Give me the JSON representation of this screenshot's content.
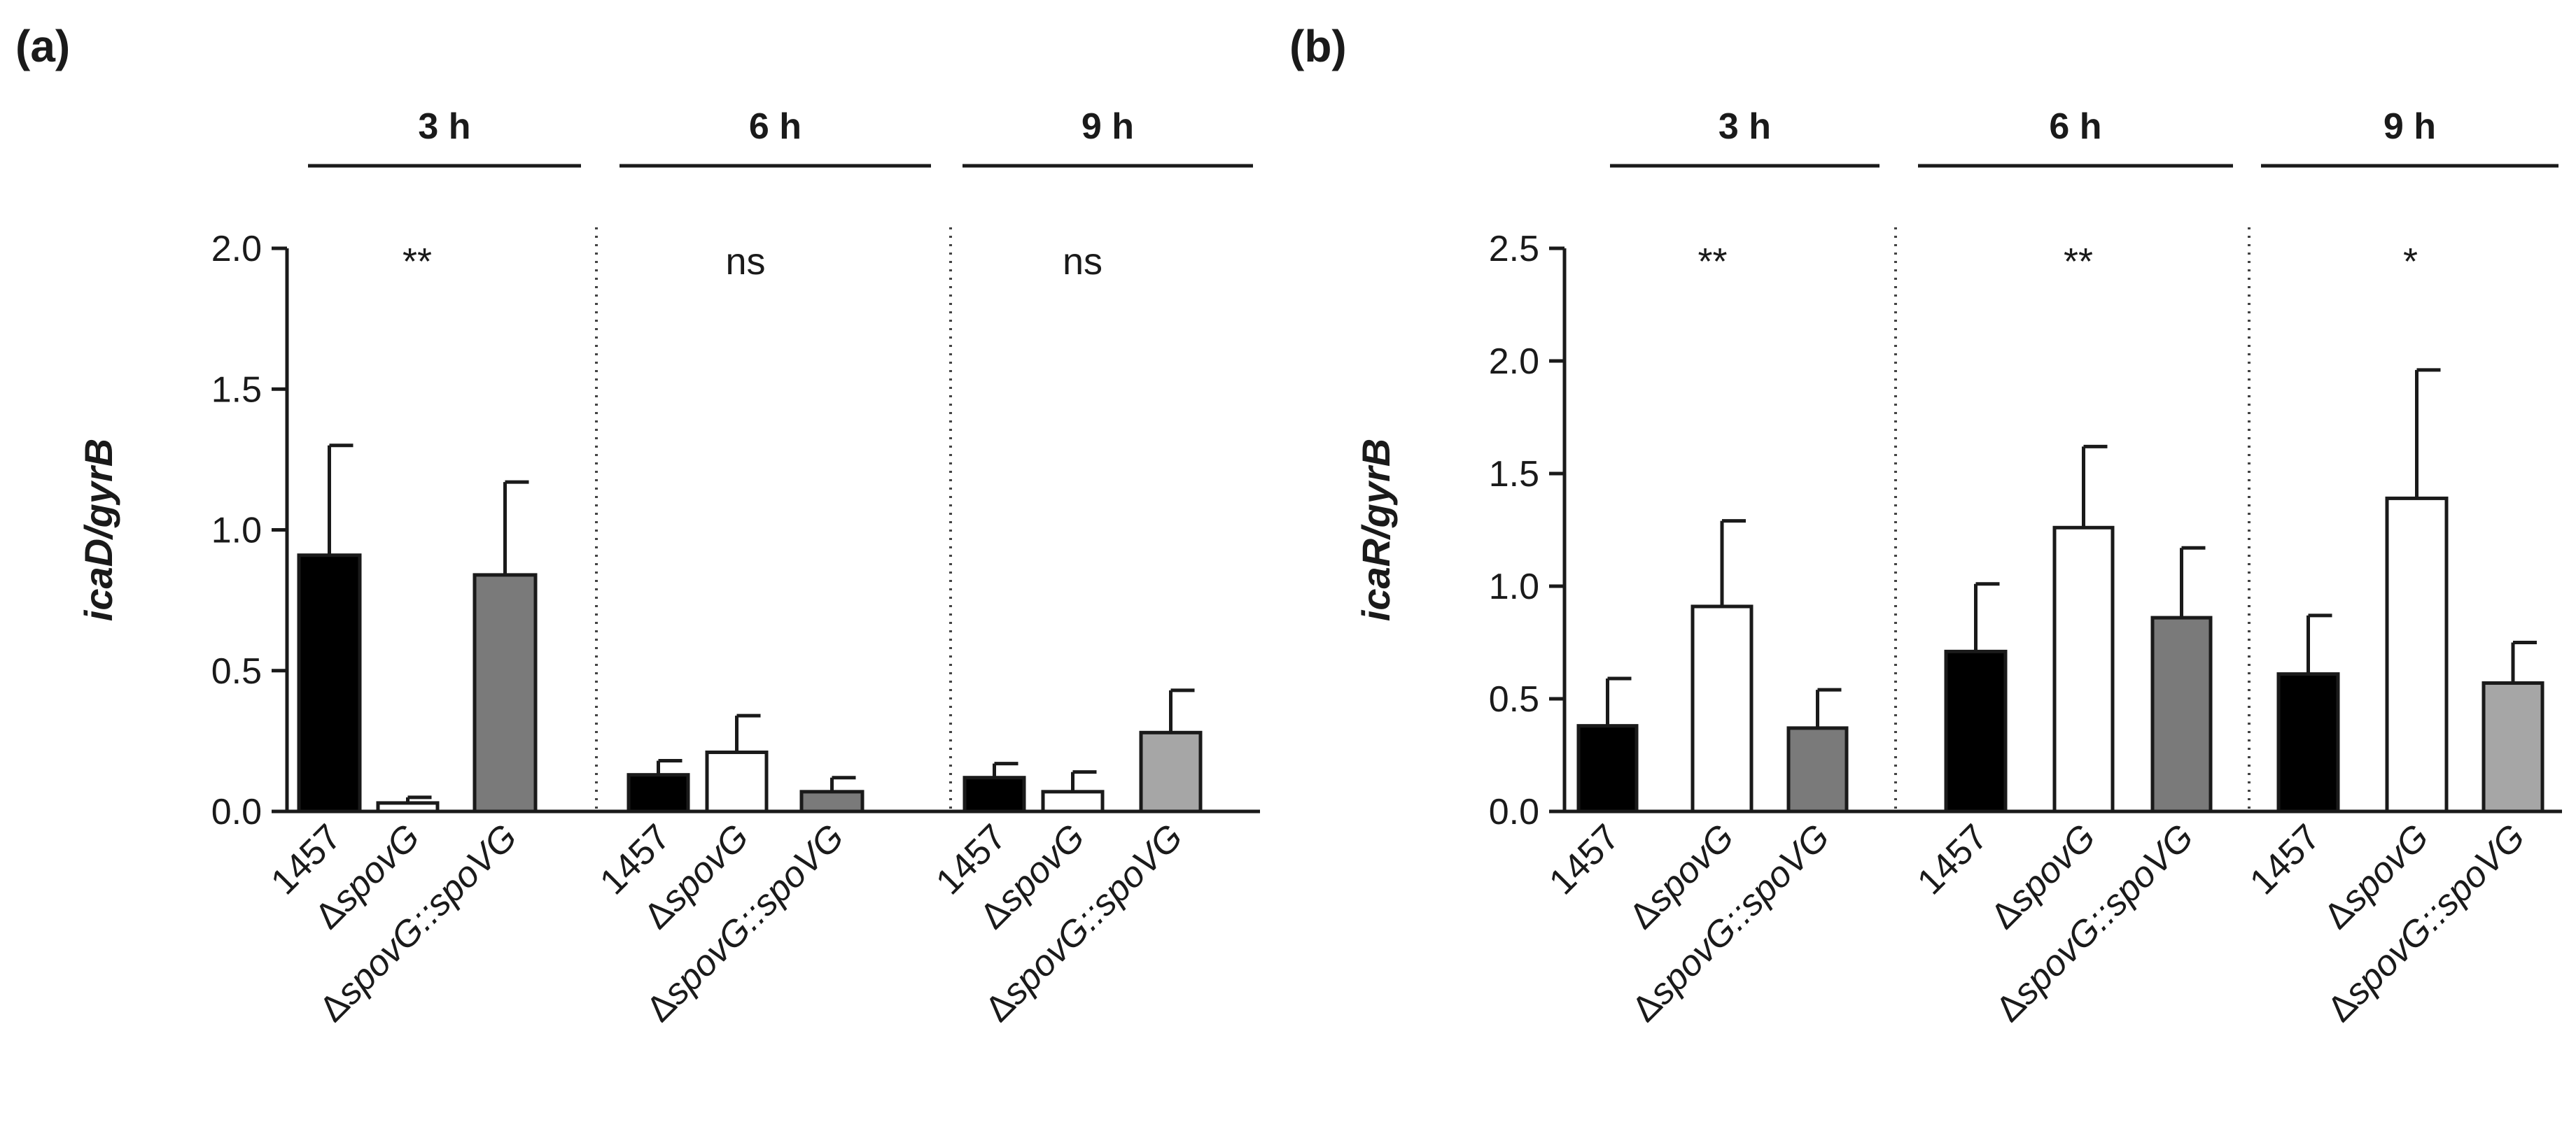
{
  "chart_data": [
    {
      "type": "bar",
      "panel": "(a)",
      "ylabel": "icaD/gyrB",
      "ylim": [
        0,
        2.0
      ],
      "yticks": [
        "0.0",
        "0.5",
        "1.0",
        "1.5",
        "2.0"
      ],
      "groups": [
        {
          "label": "3 h",
          "significance": "**",
          "categories": [
            "1457",
            "ΔspovG",
            "ΔspovG::spoVG"
          ],
          "values": [
            0.91,
            0.03,
            0.84
          ],
          "errors": [
            0.39,
            0.02,
            0.33
          ],
          "colors": [
            "#000000",
            "#ffffff",
            "#7a7a7a"
          ]
        },
        {
          "label": "6 h",
          "significance": "ns",
          "categories": [
            "1457",
            "ΔspovG",
            "ΔspovG::spoVG"
          ],
          "values": [
            0.13,
            0.21,
            0.07
          ],
          "errors": [
            0.05,
            0.13,
            0.05
          ],
          "colors": [
            "#000000",
            "#ffffff",
            "#7a7a7a"
          ]
        },
        {
          "label": "9 h",
          "significance": "ns",
          "categories": [
            "1457",
            "ΔspovG",
            "ΔspovG::spoVG"
          ],
          "values": [
            0.12,
            0.07,
            0.28
          ],
          "errors": [
            0.05,
            0.07,
            0.15
          ],
          "colors": [
            "#000000",
            "#ffffff",
            "#a6a6a6"
          ]
        }
      ]
    },
    {
      "type": "bar",
      "panel": "(b)",
      "ylabel": "icaR/gyrB",
      "ylim": [
        0,
        2.5
      ],
      "yticks": [
        "0.0",
        "0.5",
        "1.0",
        "1.5",
        "2.0",
        "2.5"
      ],
      "groups": [
        {
          "label": "3 h",
          "significance": "**",
          "categories": [
            "1457",
            "ΔspovG",
            "ΔspovG::spoVG"
          ],
          "values": [
            0.38,
            0.91,
            0.37
          ],
          "errors": [
            0.21,
            0.38,
            0.17
          ],
          "colors": [
            "#000000",
            "#ffffff",
            "#7a7a7a"
          ]
        },
        {
          "label": "6 h",
          "significance": "**",
          "categories": [
            "1457",
            "ΔspovG",
            "ΔspovG::spoVG"
          ],
          "values": [
            0.71,
            1.26,
            0.86
          ],
          "errors": [
            0.3,
            0.36,
            0.31
          ],
          "colors": [
            "#000000",
            "#ffffff",
            "#7a7a7a"
          ]
        },
        {
          "label": "9 h",
          "significance": "*",
          "categories": [
            "1457",
            "ΔspovG",
            "ΔspovG::spoVG"
          ],
          "values": [
            0.61,
            1.39,
            0.57
          ],
          "errors": [
            0.26,
            0.57,
            0.18
          ],
          "colors": [
            "#000000",
            "#ffffff",
            "#a6a6a6"
          ]
        }
      ]
    }
  ]
}
